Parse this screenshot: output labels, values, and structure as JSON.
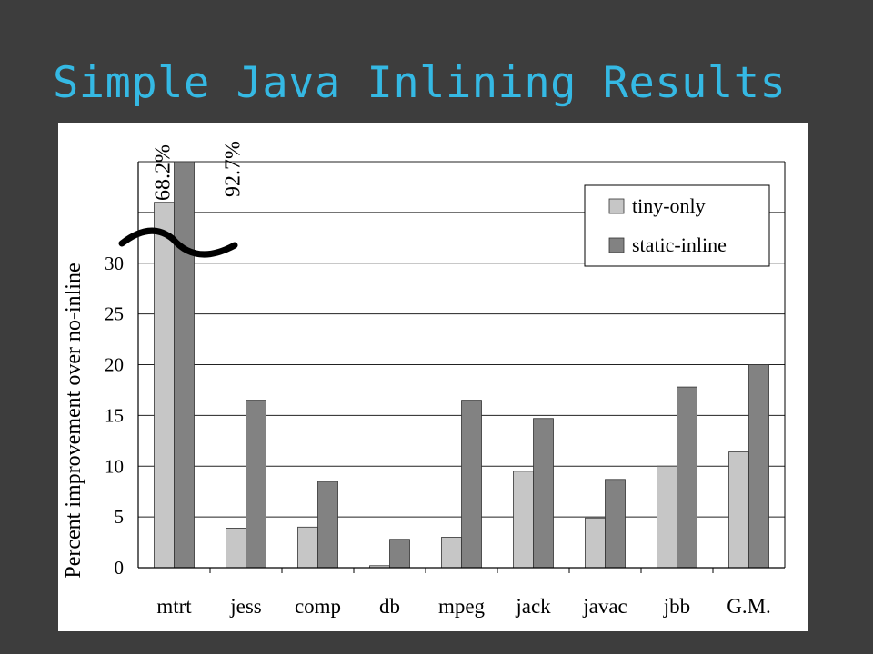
{
  "slide": {
    "title": "Simple Java Inlining Results"
  },
  "chart_data": {
    "type": "bar",
    "title": "",
    "xlabel": "",
    "ylabel": "Percent improvement over no-inline",
    "ylim": [
      0,
      40
    ],
    "axis_break": true,
    "yticks": [
      "0",
      "5",
      "10",
      "15",
      "20",
      "25",
      "30"
    ],
    "categories": [
      "mtrt",
      "jess",
      "comp",
      "db",
      "mpeg",
      "jack",
      "javac",
      "jbb",
      "G.M."
    ],
    "series": [
      {
        "name": "tiny-only",
        "color": "#c6c6c6",
        "values": [
          68.2,
          3.9,
          4.0,
          0.2,
          3.0,
          9.5,
          4.9,
          10.0,
          11.4
        ]
      },
      {
        "name": "static-inline",
        "color": "#828282",
        "values": [
          92.7,
          16.5,
          8.5,
          2.8,
          16.5,
          14.7,
          8.7,
          17.8,
          20.0
        ]
      }
    ],
    "annotations": [
      "68.2%",
      "92.7%"
    ],
    "legend_position": "top-right",
    "grid": true
  }
}
